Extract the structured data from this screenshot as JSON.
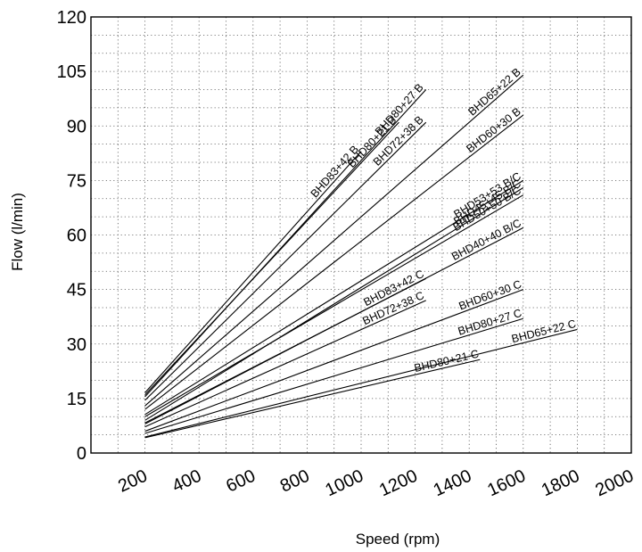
{
  "chart_data": {
    "type": "line",
    "title": "",
    "xlabel": "Speed (rpm)",
    "ylabel": "Flow (l/min)",
    "xlim": [
      0,
      2000
    ],
    "ylim": [
      0,
      120
    ],
    "x_tick_labels": [
      "200",
      "400",
      "600",
      "800",
      "1000",
      "1200",
      "1400",
      "1600",
      "1800",
      "2000"
    ],
    "x_tick_values": [
      200,
      400,
      600,
      800,
      1000,
      1200,
      1400,
      1600,
      1800,
      2000
    ],
    "y_tick_labels": [
      "0",
      "15",
      "30",
      "45",
      "60",
      "75",
      "90",
      "105",
      "120"
    ],
    "y_tick_values": [
      0,
      15,
      30,
      45,
      60,
      75,
      90,
      105,
      120
    ],
    "grid": true,
    "series": [
      {
        "name": "BHD83+42 B",
        "x": [
          200,
          1000
        ],
        "y": [
          16.6,
          83
        ]
      },
      {
        "name": "BHD80+21 B",
        "x": [
          200,
          1140
        ],
        "y": [
          16,
          91
        ]
      },
      {
        "name": "BHD80+27 B",
        "x": [
          200,
          1240
        ],
        "y": [
          15.5,
          100
        ]
      },
      {
        "name": "BHD72+38 B",
        "x": [
          200,
          1240
        ],
        "y": [
          14.5,
          91
        ]
      },
      {
        "name": "BHD65+22 B",
        "x": [
          200,
          1600
        ],
        "y": [
          13,
          104
        ]
      },
      {
        "name": "BHD60+30 B",
        "x": [
          200,
          1600
        ],
        "y": [
          12,
          93
        ]
      },
      {
        "name": "BHD53+53 B/C",
        "x": [
          200,
          1600
        ],
        "y": [
          10.6,
          75
        ]
      },
      {
        "name": "BHD50+50 B/C",
        "x": [
          200,
          1600
        ],
        "y": [
          10,
          71
        ]
      },
      {
        "name": "BHD45+45 B/C",
        "x": [
          200,
          1600
        ],
        "y": [
          9,
          73
        ]
      },
      {
        "name": "BHD40+40 B/C",
        "x": [
          200,
          1600
        ],
        "y": [
          8,
          62
        ]
      },
      {
        "name": "BHD83+42 C",
        "x": [
          200,
          1240
        ],
        "y": [
          8.3,
          48
        ]
      },
      {
        "name": "BHD72+38 C",
        "x": [
          200,
          1240
        ],
        "y": [
          7.2,
          42
        ]
      },
      {
        "name": "BHD60+30 C",
        "x": [
          200,
          1600
        ],
        "y": [
          6,
          45
        ]
      },
      {
        "name": "BHD80+27 C",
        "x": [
          200,
          1600
        ],
        "y": [
          5.4,
          37
        ]
      },
      {
        "name": "BHD65+22 C",
        "x": [
          200,
          1800
        ],
        "y": [
          4.4,
          34
        ]
      },
      {
        "name": "BHD80+21 C",
        "x": [
          200,
          1440
        ],
        "y": [
          4.2,
          25.7
        ]
      }
    ]
  }
}
